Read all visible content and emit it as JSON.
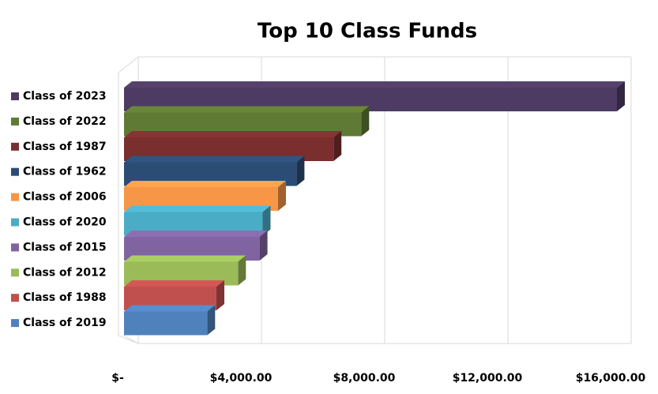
{
  "chart_data": {
    "type": "bar3d",
    "title": "Top 10 Class Funds",
    "categories": [
      "Class of 2023",
      "Class of 2022",
      "Class of 1987",
      "Class of 1962",
      "Class of 2006",
      "Class of 2020",
      "Class of 2015",
      "Class of 2012",
      "Class of 1988",
      "Class of 2019"
    ],
    "values": [
      16000,
      7700,
      6800,
      5600,
      5000,
      4500,
      4400,
      3700,
      3000,
      2700
    ],
    "colors": [
      "#4e3b63",
      "#5f7a34",
      "#7a2f2e",
      "#2b4d75",
      "#f79646",
      "#4bacc6",
      "#8064a2",
      "#9bbb59",
      "#c0504d",
      "#4f81bd"
    ],
    "xlim": [
      0,
      16000
    ],
    "xticks": [
      {
        "value": 0,
        "label": "$-"
      },
      {
        "value": 4000,
        "label": "$4,000.00"
      },
      {
        "value": 8000,
        "label": "$8,000.00"
      },
      {
        "value": 12000,
        "label": "$12,000.00"
      },
      {
        "value": 16000,
        "label": "$16,000.00"
      }
    ],
    "grid": true
  }
}
